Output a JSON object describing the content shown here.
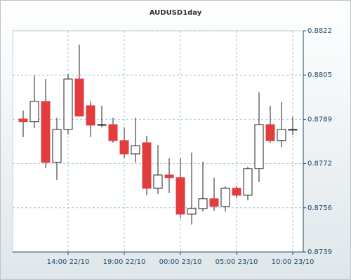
{
  "chart_data": {
    "type": "candlestick",
    "title": "AUDUSD1day",
    "categories": [
      null,
      null,
      null,
      null,
      "14:00 22/10",
      null,
      null,
      null,
      null,
      "19:00 22/10",
      null,
      null,
      null,
      null,
      "00:00 23/10",
      null,
      null,
      null,
      null,
      "05:00 23/10",
      null,
      null,
      null,
      null,
      "10:00 23/10"
    ],
    "open": [
      0.87889,
      0.87879,
      0.87955,
      0.87726,
      0.8785,
      0.88039,
      0.87939,
      0.87868,
      0.87868,
      0.87808,
      0.87758,
      0.878,
      0.87629,
      0.87679,
      0.87669,
      0.87532,
      0.87553,
      0.8759,
      0.87561,
      0.87629,
      0.87603,
      0.87703,
      0.87868,
      0.87808,
      0.8785
    ],
    "high": [
      0.87921,
      0.88052,
      0.88039,
      0.87894,
      0.88057,
      0.88168,
      0.87955,
      0.87939,
      0.87894,
      0.87858,
      0.87894,
      0.87826,
      0.87792,
      0.87742,
      0.87742,
      0.87763,
      0.87729,
      0.87669,
      0.87637,
      0.87637,
      0.8771,
      0.87989,
      0.87939,
      0.87952,
      0.87897
    ],
    "low": [
      0.87821,
      0.87855,
      0.87705,
      0.87661,
      0.87831,
      0.879,
      0.87821,
      0.87858,
      0.878,
      0.87742,
      0.87726,
      0.87603,
      0.87608,
      0.87611,
      0.87516,
      0.87493,
      0.87542,
      0.87545,
      0.87542,
      0.87592,
      0.87584,
      0.87653,
      0.878,
      0.87784,
      0.87829
    ],
    "close": [
      0.87879,
      0.87955,
      0.87726,
      0.8785,
      0.88039,
      0.879,
      0.87866,
      0.87868,
      0.87808,
      0.87758,
      0.87789,
      0.87629,
      0.87679,
      0.87669,
      0.87532,
      0.87553,
      0.8759,
      0.87561,
      0.87629,
      0.87603,
      0.87703,
      0.87868,
      0.87808,
      0.8785,
      0.8785
    ],
    "up_color": "#ffffff",
    "down_color": "#e23c3c",
    "ylim": [
      0.8739,
      0.8822
    ],
    "yticks": [
      {
        "value": 0.8739,
        "label": "0.8739"
      },
      {
        "value": 0.87556,
        "label": "0.8756"
      },
      {
        "value": 0.87722,
        "label": "0.8772"
      },
      {
        "value": 0.87888,
        "label": "0.8789"
      },
      {
        "value": 0.88054,
        "label": "0.8805"
      },
      {
        "value": 0.8822,
        "label": "0.8822"
      }
    ],
    "grid": true
  }
}
